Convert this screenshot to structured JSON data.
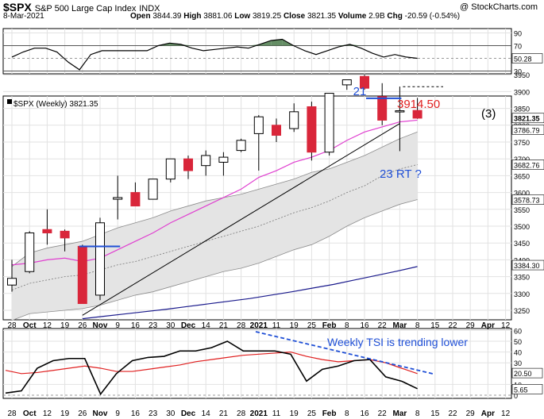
{
  "header": {
    "symbol": "$SPX",
    "name": "S&P 500 Large Cap Index",
    "exchange": "INDX",
    "watermark": "@ StockCharts.com",
    "date": "8-Mar-2021",
    "open_label": "Open",
    "open": "3844.39",
    "high_label": "High",
    "high": "3881.06",
    "low_label": "Low",
    "low": "3819.25",
    "close_label": "Close",
    "close": "3821.35",
    "volume_label": "Volume",
    "volume": "2.9B",
    "chg_label": "Chg",
    "chg": "-20.59 (-0.54%)"
  },
  "main_legend": "$SPX (Weekly) 3821.35",
  "annotations": {
    "wave21": "21",
    "target": "3914.50",
    "wave3": "(3)",
    "wave23": "23 RT ?",
    "tsi_note": "Weekly TSI is trending lower"
  },
  "colors": {
    "up": "#ffffff",
    "down": "#d9263a",
    "ma_short": "#e040d0",
    "ma_long": "#1a1a8c",
    "band_fill": "#e4e4e4",
    "band_edge": "#8c8c8c",
    "tsi_line": "#000000",
    "tsi_signal": "#e02020",
    "note_blue": "#1f4fd6",
    "note_red": "#e02020"
  },
  "chart_data": [
    {
      "type": "line",
      "panel": "top indicator",
      "y_ticks": [
        90,
        70,
        50,
        30
      ],
      "last_value_label": "50.28",
      "values": [
        52,
        60,
        66,
        66,
        60,
        44,
        32,
        56,
        62,
        62,
        62,
        62,
        62,
        70,
        74,
        72,
        66,
        62,
        64,
        66,
        68,
        66,
        72,
        78,
        80,
        70,
        62,
        56,
        62,
        68,
        72,
        66,
        58,
        52,
        56,
        52,
        50
      ]
    },
    {
      "type": "candlestick",
      "panel": "price",
      "title": "$SPX (Weekly) 3821.35",
      "x_labels": [
        "28",
        "Oct",
        "12",
        "19",
        "26",
        "Nov",
        "9",
        "16",
        "23",
        "30",
        "Dec",
        "14",
        "21",
        "28",
        "2021",
        "11",
        "19",
        "25",
        "Feb",
        "8",
        "16",
        "22",
        "Mar",
        "8",
        "15",
        "22",
        "29",
        "Apr",
        "12"
      ],
      "y_ticks": [
        3950,
        3900,
        3850,
        3800,
        3750,
        3700,
        3650,
        3600,
        3550,
        3500,
        3450,
        3400,
        3350,
        3300,
        3250
      ],
      "price_labels": [
        "3821.35",
        "3786.79",
        "3682.76",
        "3578.73",
        "3384.30"
      ],
      "ylim": [
        3222,
        3988
      ],
      "candles": [
        {
          "date": "Sep 28",
          "o": 3325,
          "h": 3400,
          "l": 3305,
          "c": 3345
        },
        {
          "date": "Oct 5",
          "o": 3365,
          "h": 3485,
          "l": 3360,
          "c": 3480
        },
        {
          "date": "Oct 12",
          "o": 3490,
          "h": 3550,
          "l": 3445,
          "c": 3480
        },
        {
          "date": "Oct 19",
          "o": 3485,
          "h": 3490,
          "l": 3425,
          "c": 3465
        },
        {
          "date": "Oct 26",
          "o": 3440,
          "h": 3445,
          "l": 3270,
          "c": 3270
        },
        {
          "date": "Nov 2",
          "o": 3295,
          "h": 3525,
          "l": 3280,
          "c": 3510
        },
        {
          "date": "Nov 9",
          "o": 3580,
          "h": 3650,
          "l": 3520,
          "c": 3585
        },
        {
          "date": "Nov 16",
          "o": 3600,
          "h": 3630,
          "l": 3560,
          "c": 3560
        },
        {
          "date": "Nov 23",
          "o": 3580,
          "h": 3640,
          "l": 3580,
          "c": 3640
        },
        {
          "date": "Nov 30",
          "o": 3640,
          "h": 3700,
          "l": 3630,
          "c": 3700
        },
        {
          "date": "Dec 7",
          "o": 3700,
          "h": 3710,
          "l": 3640,
          "c": 3665
        },
        {
          "date": "Dec 14",
          "o": 3680,
          "h": 3725,
          "l": 3650,
          "c": 3710
        },
        {
          "date": "Dec 21",
          "o": 3690,
          "h": 3720,
          "l": 3650,
          "c": 3705
        },
        {
          "date": "Dec 28",
          "o": 3725,
          "h": 3760,
          "l": 3720,
          "c": 3755
        },
        {
          "date": "Jan 4",
          "o": 3775,
          "h": 3830,
          "l": 3665,
          "c": 3825
        },
        {
          "date": "Jan 11",
          "o": 3800,
          "h": 3820,
          "l": 3750,
          "c": 3770
        },
        {
          "date": "Jan 19",
          "o": 3790,
          "h": 3865,
          "l": 3780,
          "c": 3840
        },
        {
          "date": "Jan 25",
          "o": 3855,
          "h": 3870,
          "l": 3695,
          "c": 3720
        },
        {
          "date": "Feb 1",
          "o": 3720,
          "h": 3895,
          "l": 3710,
          "c": 3895
        },
        {
          "date": "Feb 8",
          "o": 3920,
          "h": 3935,
          "l": 3905,
          "c": 3935
        },
        {
          "date": "Feb 16",
          "o": 3945,
          "h": 3950,
          "l": 3905,
          "c": 3910
        },
        {
          "date": "Feb 22",
          "o": 3885,
          "h": 3925,
          "l": 3800,
          "c": 3815
        },
        {
          "date": "Mar 1",
          "o": 3840,
          "h": 3915,
          "l": 3723,
          "c": 3843
        },
        {
          "date": "Mar 8",
          "o": 3844,
          "h": 3881,
          "l": 3819,
          "c": 3821
        }
      ],
      "ma_short": [
        3385,
        3390,
        3400,
        3405,
        3395,
        3405,
        3430,
        3455,
        3480,
        3510,
        3535,
        3560,
        3585,
        3610,
        3645,
        3665,
        3690,
        3705,
        3725,
        3755,
        3780,
        3795,
        3810,
        3815
      ],
      "ma_long": [
        3225,
        3232,
        3239,
        3246,
        3253,
        3261,
        3269,
        3277,
        3285,
        3295,
        3305,
        3316,
        3327,
        3340,
        3353,
        3366,
        3380
      ],
      "band_upper": [
        3380,
        3420,
        3435,
        3445,
        3455,
        3475,
        3495,
        3510,
        3525,
        3545,
        3560,
        3575,
        3585,
        3595,
        3610,
        3625,
        3640,
        3660,
        3670,
        3690,
        3710,
        3735,
        3760,
        3780
      ],
      "band_mid": [
        3310,
        3330,
        3340,
        3350,
        3355,
        3370,
        3385,
        3395,
        3410,
        3425,
        3440,
        3455,
        3470,
        3485,
        3500,
        3520,
        3540,
        3555,
        3575,
        3600,
        3620,
        3650,
        3670,
        3683
      ],
      "band_lower": [
        3220,
        3240,
        3245,
        3250,
        3255,
        3265,
        3280,
        3295,
        3305,
        3320,
        3335,
        3350,
        3365,
        3375,
        3390,
        3410,
        3430,
        3445,
        3470,
        3500,
        3525,
        3545,
        3565,
        3579
      ],
      "trendline": [
        [
          4,
          3235
        ],
        [
          22,
          3805
        ]
      ],
      "target_line": 3914.5
    },
    {
      "type": "line",
      "panel": "bottom indicator",
      "title": "Weekly TSI is trending lower",
      "y_ticks": [
        60,
        50,
        40,
        30,
        10,
        0
      ],
      "last_value_labels": [
        "20.50",
        "5.65"
      ],
      "tsi": [
        2,
        4,
        25,
        32,
        34,
        34,
        1,
        20,
        32,
        35,
        36,
        41,
        41,
        44,
        50,
        41,
        41,
        41,
        38,
        13,
        24,
        27,
        32,
        33,
        17,
        13,
        6
      ],
      "signal": [
        23,
        20,
        21,
        23,
        25,
        27,
        25,
        22,
        22,
        24,
        26,
        28,
        31,
        33,
        35,
        37,
        38,
        39,
        40,
        36,
        33,
        31,
        32,
        33,
        30,
        25,
        20
      ]
    }
  ]
}
